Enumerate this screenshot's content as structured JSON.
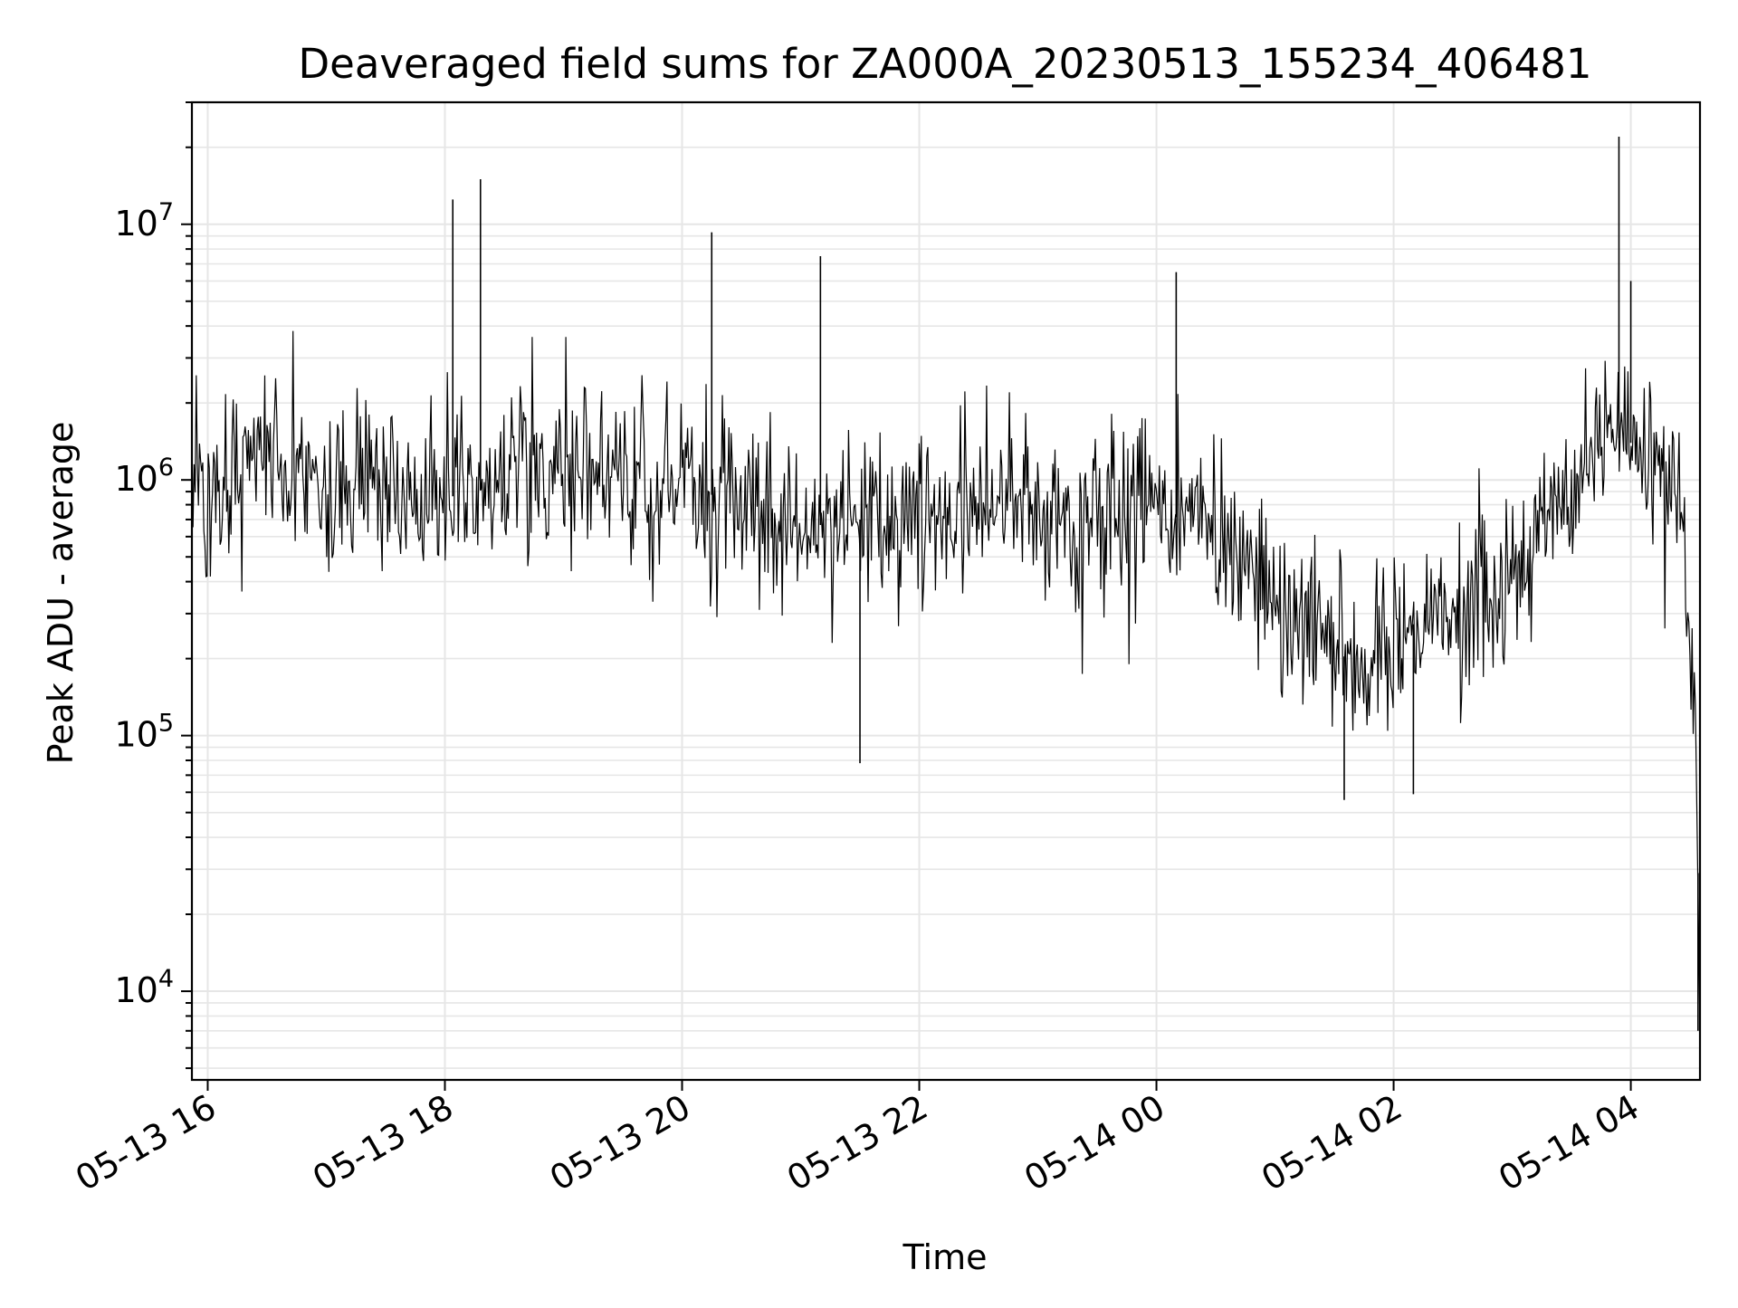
{
  "chart_data": {
    "type": "line",
    "title": "Deaveraged field sums for ZA000A_20230513_155234_406481",
    "xlabel": "Time",
    "ylabel": "Peak ADU - average",
    "yscale": "log",
    "ylim": [
      4500,
      30000000
    ],
    "xlim": [
      "2023-05-13 15:52",
      "2023-05-14 04:35"
    ],
    "grid": true,
    "line_color": "#000000",
    "grid_color": "#e6e6e6",
    "x_ticks": [
      {
        "t": "2023-05-13 16:00",
        "label": "05-13 16"
      },
      {
        "t": "2023-05-13 18:00",
        "label": "05-13 18"
      },
      {
        "t": "2023-05-13 20:00",
        "label": "05-13 20"
      },
      {
        "t": "2023-05-13 22:00",
        "label": "05-13 22"
      },
      {
        "t": "2023-05-14 00:00",
        "label": "05-14 00"
      },
      {
        "t": "2023-05-14 02:00",
        "label": "05-14 02"
      },
      {
        "t": "2023-05-14 04:00",
        "label": "05-14 04"
      }
    ],
    "y_ticks": [
      {
        "value": 10000,
        "base": "10",
        "exp": "4"
      },
      {
        "value": 100000,
        "base": "10",
        "exp": "5"
      },
      {
        "value": 1000000,
        "base": "10",
        "exp": "6"
      },
      {
        "value": 10000000,
        "base": "10",
        "exp": "7"
      }
    ],
    "series": [
      {
        "sample_points": [
          [
            "2023-05-13 15:52",
            1100000
          ],
          [
            "2023-05-13 16:00",
            900000
          ],
          [
            "2023-05-13 16:20",
            1300000
          ],
          [
            "2023-05-13 16:40",
            1100000
          ],
          [
            "2023-05-13 17:00",
            900000
          ],
          [
            "2023-05-13 17:30",
            950000
          ],
          [
            "2023-05-13 18:00",
            850000
          ],
          [
            "2023-05-13 18:30",
            950000
          ],
          [
            "2023-05-13 19:00",
            1200000
          ],
          [
            "2023-05-13 19:30",
            1100000
          ],
          [
            "2023-05-13 20:00",
            900000
          ],
          [
            "2023-05-13 20:30",
            850000
          ],
          [
            "2023-05-13 21:00",
            650000
          ],
          [
            "2023-05-13 21:30",
            700000
          ],
          [
            "2023-05-13 22:00",
            750000
          ],
          [
            "2023-05-13 22:30",
            720000
          ],
          [
            "2023-05-13 23:00",
            700000
          ],
          [
            "2023-05-13 23:30",
            650000
          ],
          [
            "2023-05-14 00:00",
            750000
          ],
          [
            "2023-05-14 00:30",
            650000
          ],
          [
            "2023-05-14 01:00",
            300000
          ],
          [
            "2023-05-14 01:30",
            230000
          ],
          [
            "2023-05-14 01:45",
            160000
          ],
          [
            "2023-05-14 02:00",
            260000
          ],
          [
            "2023-05-14 02:30",
            300000
          ],
          [
            "2023-05-14 03:00",
            420000
          ],
          [
            "2023-05-14 03:30",
            900000
          ],
          [
            "2023-05-14 03:50",
            1500000
          ],
          [
            "2023-05-14 04:10",
            1300000
          ],
          [
            "2023-05-14 04:25",
            800000
          ],
          [
            "2023-05-14 04:33",
            120000
          ],
          [
            "2023-05-14 04:35",
            7000
          ]
        ],
        "spikes": [
          [
            "2023-05-13 18:04",
            12500000
          ],
          [
            "2023-05-13 18:18",
            15000000
          ],
          [
            "2023-05-13 20:15",
            9300000
          ],
          [
            "2023-05-13 21:10",
            7500000
          ],
          [
            "2023-05-14 00:10",
            6500000
          ],
          [
            "2023-05-14 03:54",
            22000000
          ],
          [
            "2023-05-14 04:00",
            6000000
          ],
          [
            "2023-05-13 21:30",
            78000
          ],
          [
            "2023-05-14 01:35",
            56000
          ],
          [
            "2023-05-14 02:10",
            59000
          ],
          [
            "2023-05-14 04:34",
            7000
          ]
        ]
      }
    ]
  }
}
